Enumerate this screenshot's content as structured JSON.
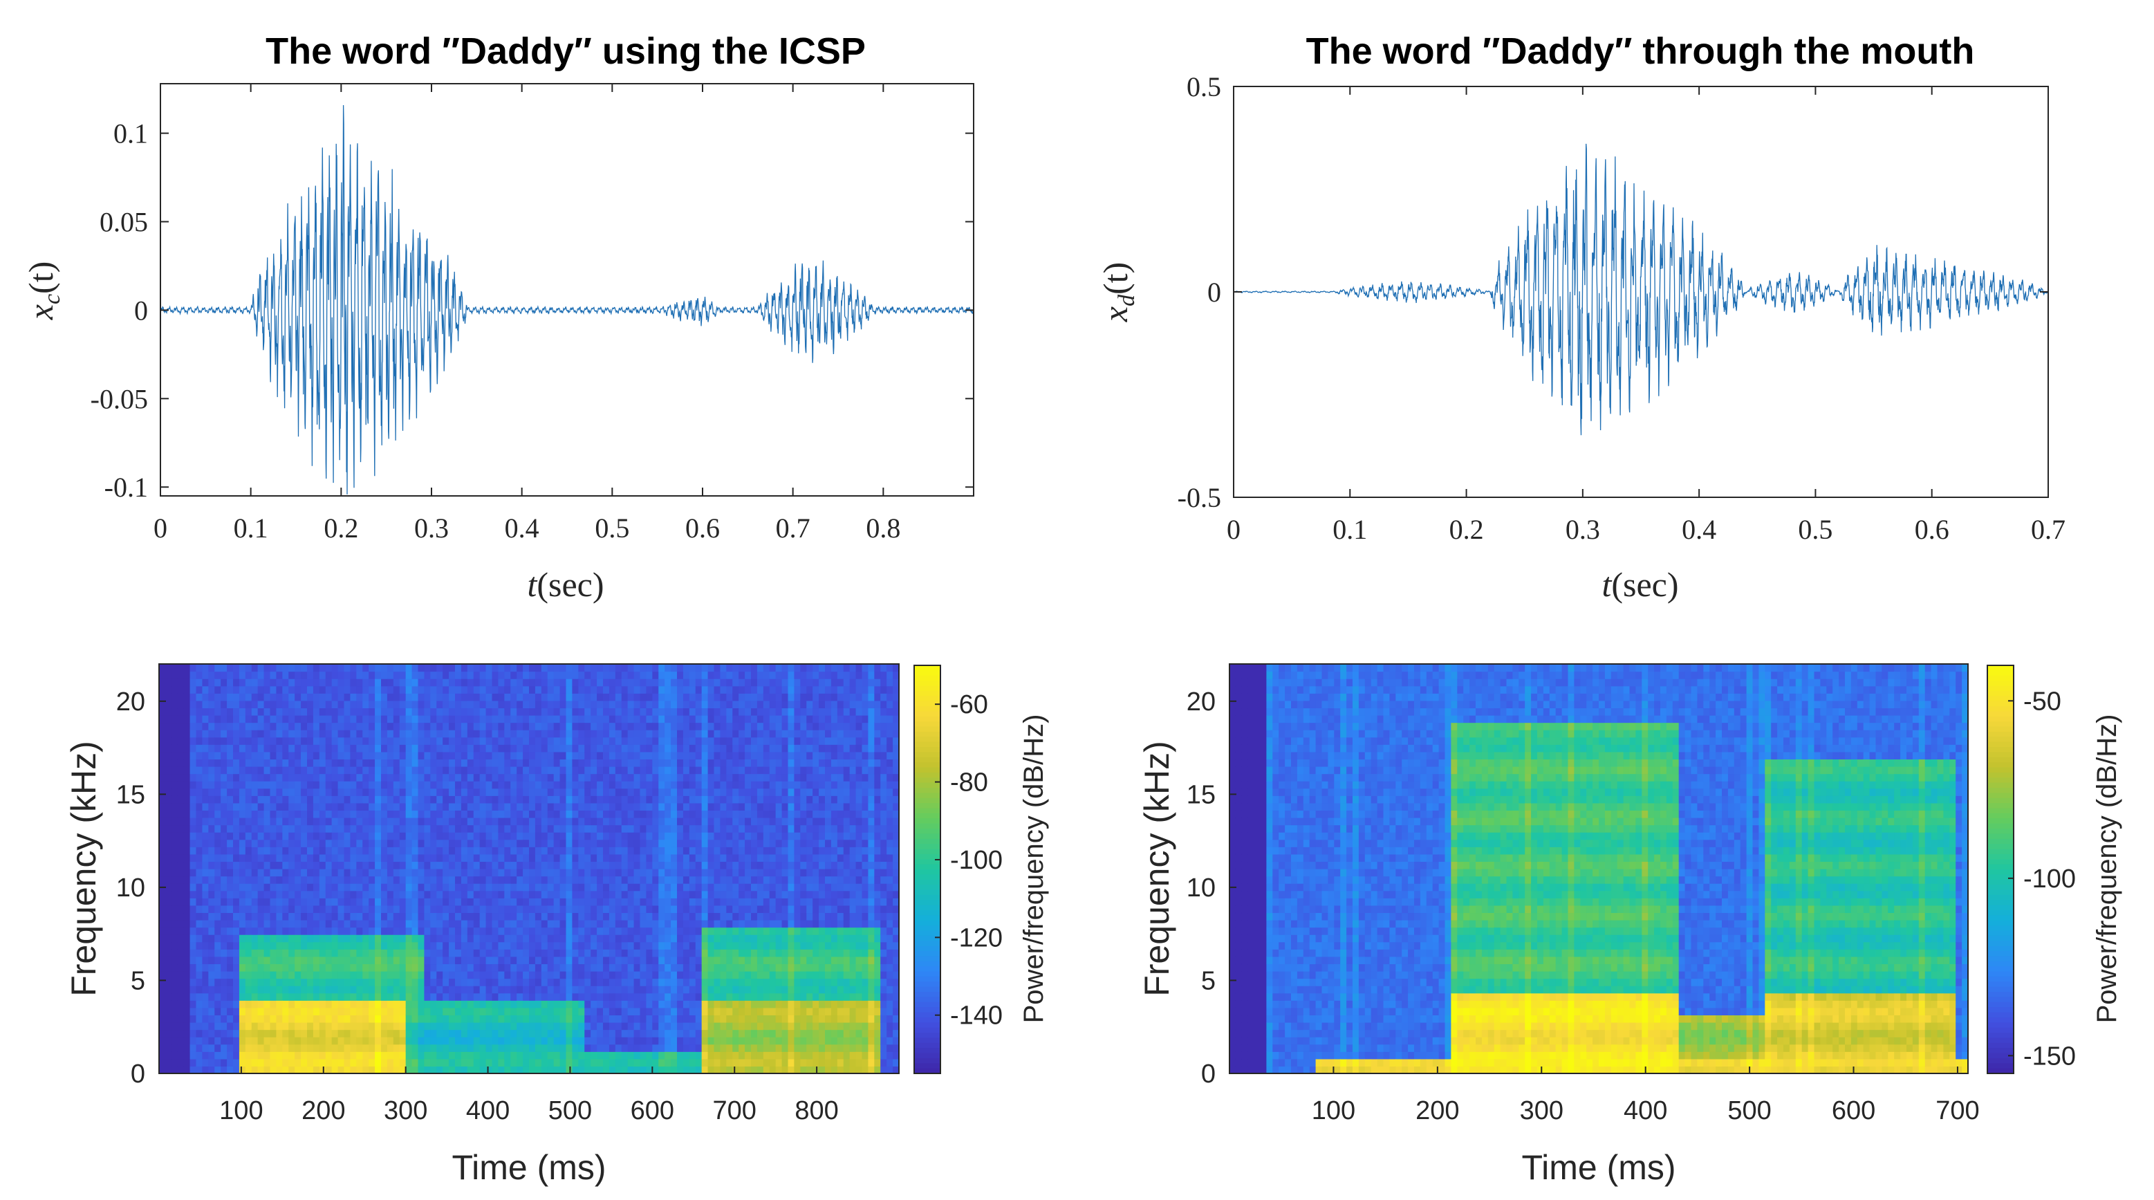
{
  "colors": {
    "waveform": "#1f6fb4",
    "axis": "#262626",
    "parula": [
      "#3e26a8",
      "#4150e0",
      "#2e87f6",
      "#14afdb",
      "#20c6a0",
      "#64cc5e",
      "#c2c22e",
      "#f7d83a",
      "#f9fb0e"
    ]
  },
  "chart_data": [
    {
      "id": "wave-icsp",
      "type": "line",
      "title": "The word ″Daddy″ using the ICSP",
      "xlabel_var": "t",
      "xlabel_unit": "(sec)",
      "ylabel_var": "x",
      "ylabel_sub": "c",
      "ylabel_arg": "(t)",
      "xlim": [
        0,
        0.9
      ],
      "ylim": [
        -0.105,
        0.128
      ],
      "xticks": [
        0,
        0.1,
        0.2,
        0.3,
        0.4,
        0.5,
        0.6,
        0.7,
        0.8
      ],
      "xtick_labels": [
        "0",
        "0.1",
        "0.2",
        "0.3",
        "0.4",
        "0.5",
        "0.6",
        "0.7",
        "0.8"
      ],
      "yticks": [
        0.1,
        0.05,
        0,
        -0.05,
        -0.1
      ],
      "ytick_labels": [
        "0.1",
        "0.05",
        "0",
        "-0.05",
        "-0.1"
      ],
      "noise_floor": 0.002,
      "segments": [
        {
          "start": 0.1,
          "end": 0.34,
          "peak": 0.2,
          "amp": 0.12
        },
        {
          "start": 0.55,
          "end": 0.62,
          "peak": 0.6,
          "amp": 0.01
        },
        {
          "start": 0.66,
          "end": 0.79,
          "peak": 0.72,
          "amp": 0.034
        }
      ],
      "pitch_hz": 130
    },
    {
      "id": "wave-mouth",
      "type": "line",
      "title": "The word ″Daddy″ through the mouth",
      "xlabel_var": "t",
      "xlabel_unit": "(sec)",
      "ylabel_var": "x",
      "ylabel_sub": "d",
      "ylabel_arg": "(t)",
      "xlim": [
        0,
        0.7
      ],
      "ylim": [
        -0.5,
        0.5
      ],
      "xticks": [
        0,
        0.1,
        0.2,
        0.3,
        0.4,
        0.5,
        0.6,
        0.7
      ],
      "xtick_labels": [
        "0",
        "0.1",
        "0.2",
        "0.3",
        "0.4",
        "0.5",
        "0.6",
        "0.7"
      ],
      "yticks": [
        0.5,
        0,
        -0.5
      ],
      "ytick_labels": [
        "0.5",
        "0",
        "-0.5"
      ],
      "noise_floor": 0.002,
      "segments": [
        {
          "start": 0.085,
          "end": 0.22,
          "peak": 0.15,
          "amp": 0.03
        },
        {
          "start": 0.22,
          "end": 0.44,
          "peak": 0.3,
          "amp": 0.4
        },
        {
          "start": 0.44,
          "end": 0.52,
          "peak": 0.48,
          "amp": 0.06
        },
        {
          "start": 0.52,
          "end": 0.7,
          "peak": 0.55,
          "amp": 0.12
        }
      ],
      "pitch_hz": 120
    },
    {
      "id": "spec-icsp",
      "type": "heatmap",
      "xlabel": "Time (ms)",
      "ylabel": "Frequency (kHz)",
      "colorbar_label": "Power/frequency (dB/Hz)",
      "xlim": [
        0,
        900
      ],
      "ylim": [
        0,
        22
      ],
      "xticks": [
        100,
        200,
        300,
        400,
        500,
        600,
        700,
        800
      ],
      "xtick_labels": [
        "100",
        "200",
        "300",
        "400",
        "500",
        "600",
        "700",
        "800"
      ],
      "yticks": [
        0,
        5,
        10,
        15,
        20
      ],
      "ytick_labels": [
        "0",
        "5",
        "10",
        "15",
        "20"
      ],
      "clim": [
        -155,
        -50
      ],
      "colorbar_ticks": [
        -60,
        -80,
        -100,
        -120,
        -140
      ],
      "colorbar_tick_labels": [
        "-60",
        "-80",
        "-100",
        "-120",
        "-140"
      ],
      "background_db": -140,
      "silence_end_ms": 35,
      "regions": [
        {
          "t": [
            100,
            300
          ],
          "f": [
            0,
            4
          ],
          "db": -65
        },
        {
          "t": [
            100,
            320
          ],
          "f": [
            4,
            7.5
          ],
          "db": -100
        },
        {
          "t": [
            300,
            520
          ],
          "f": [
            0,
            4
          ],
          "db": -108
        },
        {
          "t": [
            520,
            660
          ],
          "f": [
            0,
            1
          ],
          "db": -110
        },
        {
          "t": [
            660,
            880
          ],
          "f": [
            0,
            4
          ],
          "db": -80
        },
        {
          "t": [
            660,
            880
          ],
          "f": [
            4,
            8
          ],
          "db": -100
        }
      ]
    },
    {
      "id": "spec-mouth",
      "type": "heatmap",
      "xlabel": "Time (ms)",
      "ylabel": "Frequency (kHz)",
      "colorbar_label": "Power/frequency (dB/Hz)",
      "xlim": [
        0,
        710
      ],
      "ylim": [
        0,
        22
      ],
      "xticks": [
        100,
        200,
        300,
        400,
        500,
        600,
        700
      ],
      "xtick_labels": [
        "100",
        "200",
        "300",
        "400",
        "500",
        "600",
        "700"
      ],
      "yticks": [
        0,
        5,
        10,
        15,
        20
      ],
      "ytick_labels": [
        "0",
        "5",
        "10",
        "15",
        "20"
      ],
      "clim": [
        -155,
        -40
      ],
      "colorbar_ticks": [
        -50,
        -100,
        -150
      ],
      "colorbar_tick_labels": [
        "-50",
        "-100",
        "-150"
      ],
      "background_db": -132,
      "silence_end_ms": 35,
      "regions": [
        {
          "t": [
            80,
            710
          ],
          "f": [
            0,
            0.8
          ],
          "db": -60
        },
        {
          "t": [
            215,
            430
          ],
          "f": [
            0,
            4.5
          ],
          "db": -50
        },
        {
          "t": [
            215,
            430
          ],
          "f": [
            4.5,
            19
          ],
          "db": -92
        },
        {
          "t": [
            430,
            515
          ],
          "f": [
            0,
            3
          ],
          "db": -75
        },
        {
          "t": [
            515,
            700
          ],
          "f": [
            0,
            4.5
          ],
          "db": -62
        },
        {
          "t": [
            515,
            700
          ],
          "f": [
            4.5,
            17
          ],
          "db": -98
        }
      ]
    }
  ]
}
